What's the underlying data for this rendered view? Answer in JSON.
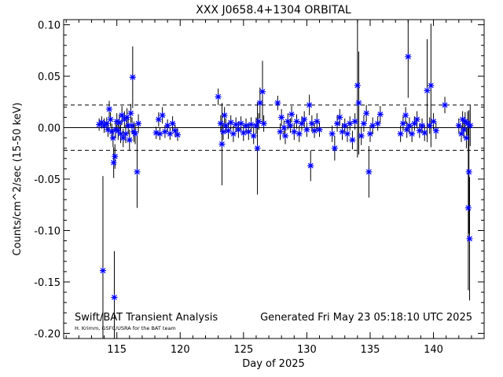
{
  "chart_data": {
    "type": "scatter",
    "title": "XXX J0658.4+1304 ORBITAL",
    "xlabel": "Day of 2025",
    "ylabel": "Counts/cm^2/sec (15-50 keV)",
    "xlim": [
      110.8,
      144.0
    ],
    "ylim": [
      -0.205,
      0.105
    ],
    "xticks": [
      115,
      120,
      125,
      130,
      135,
      140
    ],
    "yticks": [
      -0.2,
      -0.15,
      -0.1,
      -0.05,
      0.0,
      0.05,
      0.1
    ],
    "ytick_labels": [
      "-0.20",
      "-0.15",
      "-0.10",
      "-0.05",
      "0.00",
      "0.05",
      "0.10"
    ],
    "zero_line": 0.0,
    "threshold_lines": [
      0.022,
      -0.022
    ],
    "grid": false,
    "legend": "none",
    "annotations": {
      "left": "Swift/BAT Transient Analysis",
      "right": "Generated Fri May 23 05:18:10 UTC 2025",
      "credit": "H. Krimm, GSFC/USRA for the BAT team"
    },
    "marker_color": "#0000ff",
    "series": [
      {
        "points": [
          [
            113.6,
            0.003,
            0.006
          ],
          [
            113.8,
            0.005,
            0.006
          ],
          [
            113.9,
            -0.139,
            0.092
          ],
          [
            114.0,
            0.002,
            0.007
          ],
          [
            114.2,
            0.004,
            0.006
          ],
          [
            114.3,
            -0.002,
            0.007
          ],
          [
            114.4,
            0.018,
            0.008
          ],
          [
            114.5,
            0.008,
            0.007
          ],
          [
            114.6,
            -0.004,
            0.008
          ],
          [
            114.7,
            -0.01,
            0.009
          ],
          [
            114.75,
            -0.034,
            0.015
          ],
          [
            114.8,
            -0.165,
            0.045
          ],
          [
            114.85,
            -0.028,
            0.012
          ],
          [
            114.9,
            -0.002,
            0.008
          ],
          [
            115.0,
            0.006,
            0.008
          ],
          [
            115.1,
            -0.003,
            0.009
          ],
          [
            115.2,
            0.005,
            0.008
          ],
          [
            115.3,
            -0.006,
            0.009
          ],
          [
            115.4,
            0.012,
            0.009
          ],
          [
            115.5,
            -0.01,
            0.009
          ],
          [
            115.6,
            0.008,
            0.008
          ],
          [
            115.7,
            -0.006,
            0.009
          ],
          [
            115.8,
            0.01,
            0.009
          ],
          [
            115.9,
            0.002,
            0.008
          ],
          [
            116.0,
            -0.012,
            0.01
          ],
          [
            116.1,
            0.014,
            0.009
          ],
          [
            116.2,
            0.002,
            0.008
          ],
          [
            116.25,
            0.049,
            0.03
          ],
          [
            116.35,
            -0.004,
            0.01
          ],
          [
            116.45,
            -0.006,
            0.01
          ],
          [
            116.6,
            -0.043,
            0.035
          ],
          [
            116.7,
            0.004,
            0.009
          ],
          [
            118.1,
            -0.005,
            0.006
          ],
          [
            118.3,
            0.008,
            0.007
          ],
          [
            118.4,
            -0.006,
            0.006
          ],
          [
            118.6,
            0.012,
            0.008
          ],
          [
            118.8,
            -0.004,
            0.006
          ],
          [
            119.0,
            0.002,
            0.006
          ],
          [
            119.2,
            -0.006,
            0.006
          ],
          [
            119.4,
            0.004,
            0.007
          ],
          [
            119.6,
            -0.003,
            0.006
          ],
          [
            119.8,
            -0.007,
            0.006
          ],
          [
            123.0,
            0.03,
            0.008
          ],
          [
            123.2,
            0.004,
            0.008
          ],
          [
            123.3,
            -0.016,
            0.04
          ],
          [
            123.4,
            -0.004,
            0.008
          ],
          [
            123.5,
            0.012,
            0.008
          ],
          [
            123.6,
            0.002,
            0.007
          ],
          [
            123.8,
            -0.003,
            0.008
          ],
          [
            124.0,
            0.005,
            0.007
          ],
          [
            124.2,
            -0.006,
            0.008
          ],
          [
            124.4,
            0.003,
            0.007
          ],
          [
            124.6,
            -0.002,
            0.008
          ],
          [
            124.8,
            0.004,
            0.007
          ],
          [
            125.0,
            -0.005,
            0.008
          ],
          [
            125.2,
            0.002,
            0.007
          ],
          [
            125.4,
            -0.004,
            0.008
          ],
          [
            125.6,
            0.003,
            0.007
          ],
          [
            125.8,
            -0.008,
            0.008
          ],
          [
            126.0,
            0.002,
            0.008
          ],
          [
            126.1,
            -0.02,
            0.045
          ],
          [
            126.2,
            0.006,
            0.008
          ],
          [
            126.3,
            0.024,
            0.015
          ],
          [
            126.5,
            0.035,
            0.03
          ],
          [
            126.6,
            0.004,
            0.008
          ],
          [
            127.7,
            0.024,
            0.007
          ],
          [
            127.9,
            -0.004,
            0.008
          ],
          [
            128.0,
            0.01,
            0.008
          ],
          [
            128.2,
            0.0,
            0.007
          ],
          [
            128.3,
            -0.008,
            0.008
          ],
          [
            128.5,
            0.006,
            0.008
          ],
          [
            128.7,
            0.002,
            0.007
          ],
          [
            128.8,
            0.013,
            0.008
          ],
          [
            129.0,
            -0.004,
            0.008
          ],
          [
            129.2,
            0.006,
            0.007
          ],
          [
            129.4,
            -0.006,
            0.008
          ],
          [
            129.6,
            0.004,
            0.007
          ],
          [
            129.8,
            0.008,
            0.008
          ],
          [
            130.0,
            -0.002,
            0.007
          ],
          [
            130.2,
            0.022,
            0.01
          ],
          [
            130.3,
            -0.037,
            0.015
          ],
          [
            130.4,
            0.004,
            0.008
          ],
          [
            130.6,
            -0.003,
            0.007
          ],
          [
            130.8,
            0.006,
            0.008
          ],
          [
            131.0,
            -0.002,
            0.007
          ],
          [
            132.0,
            -0.006,
            0.008
          ],
          [
            132.2,
            -0.02,
            0.012
          ],
          [
            132.4,
            0.004,
            0.008
          ],
          [
            132.6,
            0.01,
            0.008
          ],
          [
            132.8,
            -0.004,
            0.008
          ],
          [
            133.0,
            0.002,
            0.007
          ],
          [
            133.2,
            -0.006,
            0.008
          ],
          [
            133.4,
            0.004,
            0.007
          ],
          [
            133.6,
            -0.012,
            0.009
          ],
          [
            133.8,
            0.006,
            0.008
          ],
          [
            134.0,
            0.041,
            0.07
          ],
          [
            134.1,
            0.024,
            0.05
          ],
          [
            134.3,
            -0.008,
            0.009
          ],
          [
            134.5,
            0.004,
            0.008
          ],
          [
            134.7,
            0.014,
            0.008
          ],
          [
            134.9,
            -0.043,
            0.025
          ],
          [
            135.0,
            -0.006,
            0.008
          ],
          [
            135.2,
            0.002,
            0.008
          ],
          [
            135.6,
            0.004,
            0.007
          ],
          [
            135.8,
            0.013,
            0.008
          ],
          [
            137.4,
            -0.006,
            0.008
          ],
          [
            137.6,
            0.004,
            0.007
          ],
          [
            137.8,
            0.012,
            0.008
          ],
          [
            137.9,
            -0.002,
            0.008
          ],
          [
            138.0,
            0.069,
            0.04
          ],
          [
            138.1,
            0.002,
            0.008
          ],
          [
            138.3,
            -0.006,
            0.008
          ],
          [
            138.5,
            0.004,
            0.007
          ],
          [
            138.7,
            0.008,
            0.008
          ],
          [
            138.9,
            -0.003,
            0.007
          ],
          [
            139.1,
            0.002,
            0.007
          ],
          [
            139.3,
            -0.005,
            0.008
          ],
          [
            139.5,
            0.036,
            0.05
          ],
          [
            139.7,
            0.002,
            0.008
          ],
          [
            139.8,
            0.041,
            0.06
          ],
          [
            140.0,
            0.006,
            0.008
          ],
          [
            140.2,
            -0.003,
            0.008
          ],
          [
            140.9,
            0.022,
            0.008
          ],
          [
            142.0,
            0.002,
            0.007
          ],
          [
            142.2,
            -0.006,
            0.008
          ],
          [
            142.3,
            0.008,
            0.008
          ],
          [
            142.4,
            -0.002,
            0.008
          ],
          [
            142.5,
            0.006,
            0.009
          ],
          [
            142.6,
            -0.01,
            0.01
          ],
          [
            142.7,
            0.004,
            0.012
          ],
          [
            142.75,
            -0.078,
            0.08
          ],
          [
            142.8,
            -0.043,
            0.06
          ],
          [
            142.85,
            -0.108,
            0.06
          ],
          [
            142.9,
            0.002,
            0.02
          ]
        ]
      }
    ]
  }
}
